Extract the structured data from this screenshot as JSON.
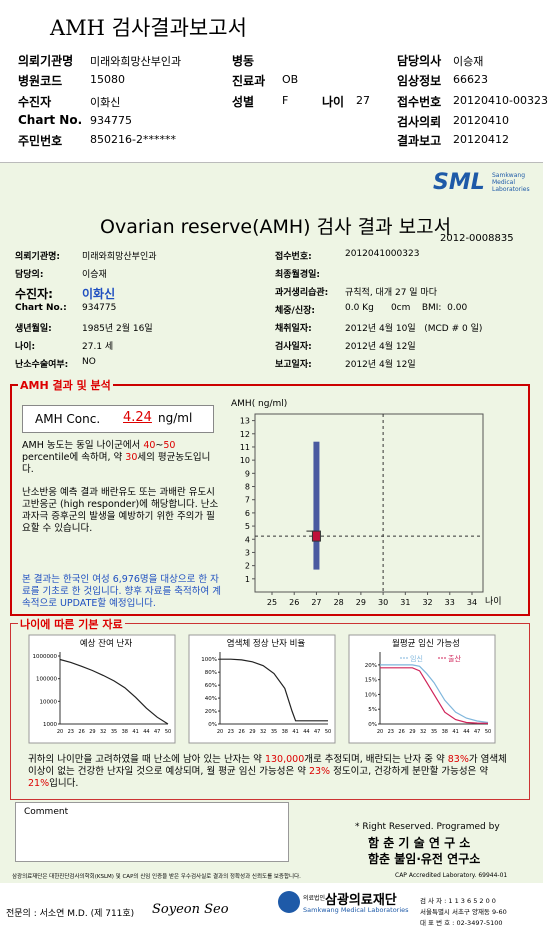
{
  "header": {
    "title": "AMH 검사결과보고서",
    "left": [
      {
        "label": "의뢰기관명",
        "value": "미래와희망산부인과"
      },
      {
        "label": "병원코드",
        "value": "15080"
      },
      {
        "label": "수진자",
        "value": "이화신"
      },
      {
        "label": "Chart No.",
        "value": "934775"
      },
      {
        "label": "주민번호",
        "value": "850216-2******"
      }
    ],
    "middle": [
      {
        "label": "병동"
      },
      {
        "label": "진료과",
        "value": "OB"
      },
      {
        "label": "성별",
        "value": "F"
      }
    ],
    "age": {
      "label": "나이",
      "value": "27"
    },
    "right": [
      {
        "label": "담당의사",
        "value": "이승재"
      },
      {
        "label": "임상정보",
        "value": "66623"
      },
      {
        "label": "접수번호",
        "value": "20120410-00323"
      },
      {
        "label": "검사의뢰",
        "value": "20120410"
      },
      {
        "label": "결과보고",
        "value": "20120412"
      }
    ]
  },
  "report": {
    "logo": "SML",
    "logo_sub": "Samkwang Medical Laboratories",
    "title": "Ovarian reserve(AMH) 검사 결과 보고서",
    "number": "2012-0008835",
    "left": [
      {
        "label": "의뢰기관명:",
        "value": "미래와희망산부인과"
      },
      {
        "label": "담당의:",
        "value": "이승재"
      },
      {
        "label": "수진자:",
        "value": "이화신"
      },
      {
        "label": "Chart No.:",
        "value": "934775"
      },
      {
        "label": "생년월일:",
        "value": "1985년 2월 16일"
      },
      {
        "label": "나이:",
        "value": "27.1 세"
      },
      {
        "label": "난소수술여부:",
        "value": "NO"
      }
    ],
    "right": [
      {
        "label": "접수번호:",
        "value": "2012041000323"
      },
      {
        "label": "최종월경일:"
      },
      {
        "label": "과거생리습관:",
        "value": "규칙적, 대개 27 일 마다"
      },
      {
        "label": "체중/신장:",
        "value": "0.0 Kg      0cm    BMI:  0.00"
      },
      {
        "label": "채취일자:",
        "value": "2012년 4월 10일   (MCD # 0 일)"
      },
      {
        "label": "검사일자:",
        "value": "2012년 4월 12일"
      },
      {
        "label": "보고일자:",
        "value": "2012년 4월 12일"
      }
    ]
  },
  "amh": {
    "heading": "AMH 결과 및 분석",
    "conc_label": "AMH Conc.",
    "conc_value": "4.24",
    "conc_unit": "ng/ml",
    "p1": [
      "AMH 농도는 동일 나이군에서 ",
      "40",
      "~",
      "50",
      " percentile에 속하며, 약 ",
      "30",
      "세의 평균농도입니다."
    ],
    "p2": "난소반응 예측 결과 배란유도 또는 과배란 유도시 고반응군 (high responder)에 해당합니다. 난소과자극 증후군의 발생을 예방하기 위한 주의가 필요할 수 있습니다.",
    "p3": "본 결과는 한국인 여성 6,976명을 대상으로 한 자료를 기초로 한 것입니다. 향후 자료를 축적하여 계속적으로 UPDATE할 예정입니다.",
    "chart": {
      "type": "range",
      "y_label": "AMH( ng/ml)",
      "x_label": "나이",
      "xlim": [
        24,
        35
      ],
      "xticks": [
        25,
        26,
        27,
        28,
        29,
        30,
        31,
        32,
        33,
        34
      ],
      "ylim": [
        0,
        13.5
      ],
      "yticks": [
        1,
        2,
        3,
        4,
        5,
        6,
        7,
        8,
        9,
        10,
        11,
        12,
        13
      ],
      "range": {
        "x": 27,
        "low": 1.7,
        "high": 11.4,
        "color": "#4a5aa0"
      },
      "point": {
        "x": 27,
        "y": 4.24,
        "color": "#c0103a"
      },
      "ref_x": 30
    }
  },
  "basic": {
    "heading": "나이에 따른 기본 자료",
    "charts": [
      {
        "type": "line",
        "title": "예상 잔여 난자",
        "log": true,
        "x": [
          20,
          23,
          26,
          29,
          32,
          35,
          38,
          41,
          44,
          47,
          50
        ],
        "xlim": [
          20,
          50
        ],
        "xticks": [
          20,
          23,
          26,
          29,
          32,
          35,
          38,
          41,
          44,
          47,
          50
        ],
        "ylim": [
          1000,
          1000000
        ],
        "yticks": [
          1000000,
          100000,
          10000,
          1000
        ],
        "series": [
          {
            "color": "#222222",
            "values": [
              700000,
              520000,
              350000,
              230000,
              140000,
              80000,
              40000,
              15000,
              5000,
              2000,
              1000
            ]
          }
        ]
      },
      {
        "type": "line",
        "title": "염색체 정상 난자 비율",
        "x": [
          20,
          23,
          26,
          29,
          32,
          35,
          38,
          40,
          41,
          44,
          47,
          50
        ],
        "xlim": [
          20,
          50
        ],
        "xticks": [
          20,
          23,
          26,
          29,
          32,
          35,
          38,
          41,
          44,
          47,
          50
        ],
        "ylim": [
          0,
          105
        ],
        "yticks": [
          {
            "value": 100,
            "label": "100%"
          },
          {
            "value": 80,
            "label": "80%"
          },
          {
            "value": 60,
            "label": "60%"
          },
          {
            "value": 40,
            "label": "40%"
          },
          {
            "value": 20,
            "label": "20%"
          },
          {
            "value": 0,
            "label": "0%"
          }
        ],
        "series": [
          {
            "color": "#222222",
            "values": [
              100,
              100,
              99,
              96,
              90,
              78,
              55,
              20,
              5,
              5,
              5,
              5
            ]
          }
        ]
      },
      {
        "type": "line",
        "title": "월평균 임신 가능성",
        "x": [
          20,
          23,
          26,
          29,
          31,
          33,
          35,
          38,
          41,
          44,
          47,
          50
        ],
        "xlim": [
          20,
          50
        ],
        "xticks": [
          20,
          23,
          26,
          29,
          32,
          35,
          38,
          41,
          44,
          47,
          50
        ],
        "ylim": [
          0,
          23
        ],
        "yticks": [
          {
            "value": 20,
            "label": "20%"
          },
          {
            "value": 15,
            "label": "15%"
          },
          {
            "value": 10,
            "label": "10%"
          },
          {
            "value": 5,
            "label": "5%"
          },
          {
            "value": 0,
            "label": "0%"
          }
        ],
        "series": [
          {
            "name": "임신",
            "color": "#7fb6dc",
            "values": [
              20,
              20,
              20,
              20,
              19.5,
              17,
              14,
              8,
              4,
              2,
              1,
              0.5
            ]
          },
          {
            "name": "출산",
            "color": "#d0245a",
            "values": [
              19,
              19,
              19,
              19,
              18,
              14,
              10,
              4,
              1.5,
              0.5,
              0.3,
              0.2
            ]
          }
        ]
      }
    ],
    "summary": [
      "귀하의 나이만을 고려하였을 때 난소에 남아 있는 난자는 약 ",
      "130,000",
      "개로 추정되며, 배란되는 난자 중 약 ",
      "83%",
      "가 염색체이상이 없는 건강한 난자일 것으로 예상되며, 월 평균 임신 가능성은 약 ",
      "23%",
      " 정도이고, 건강하게 분만할 가능성은 약 ",
      "21%",
      "입니다."
    ]
  },
  "footer": {
    "comment": "Comment",
    "rights": "* Right Reserved. Programed by",
    "lab1": "함 춘 기 술 연 구 소",
    "lab2": "함춘 불임·유전 연구소",
    "notice": "삼광의료재단은 대한진단검사의학회(KSLM) 및 CAP의 신임 인증을 받은 우수검사실로 결과의 정확성과 신뢰도를 보증합니다.",
    "cap": "CAP Accredited Laboratory. 69944-01",
    "doctor": "전문의 : 서소연 M.D. (제 711호)",
    "signature": "Soyeon Seo",
    "org_prefix": "의료법인",
    "org": "삼광의료재단",
    "org_en": "Samkwang Medical Laboratories",
    "info": [
      "검 사 자 : 1 1 3 6 5 2 0 0",
      "서울특별시 서초구 양재동 9-60",
      "대 표 번 호 : 02-3497-5100"
    ]
  }
}
